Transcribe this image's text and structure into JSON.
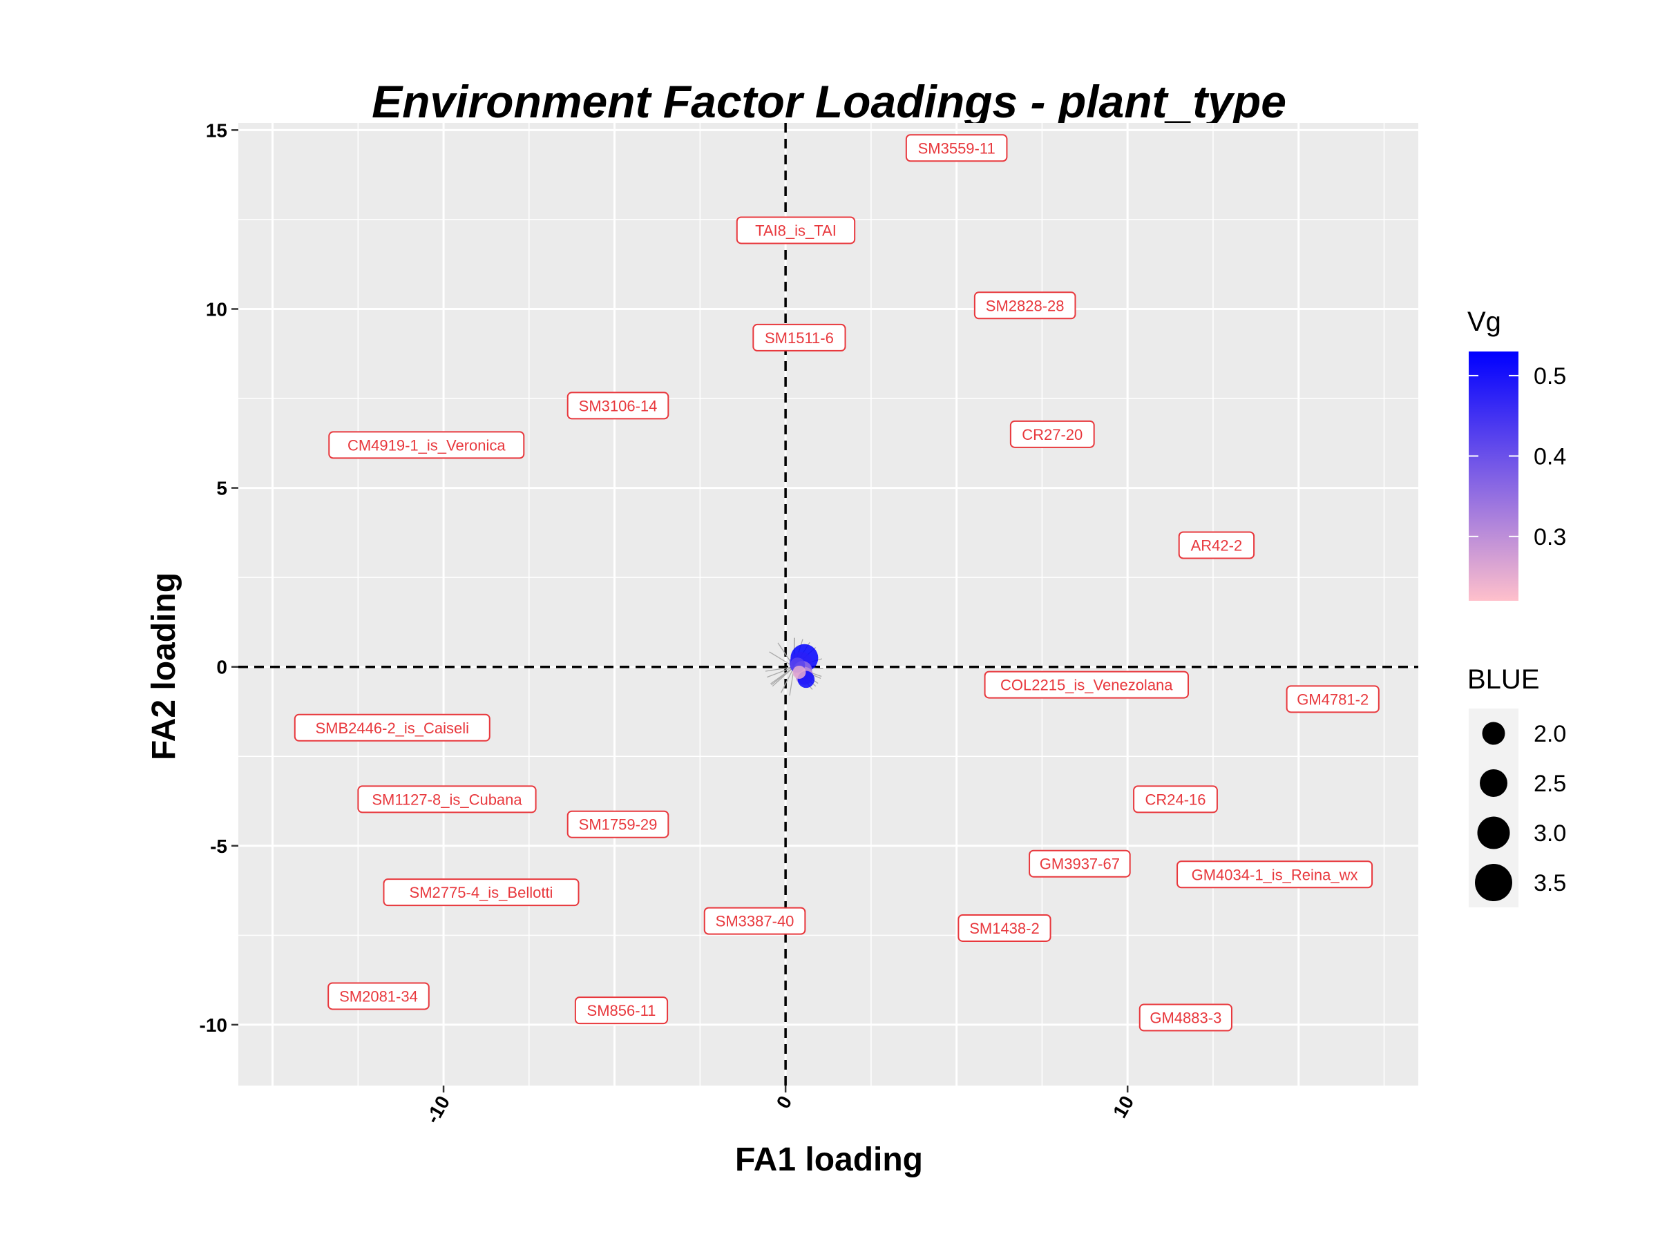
{
  "chart_data": {
    "type": "scatter",
    "title": "Environment Factor Loadings - plant_type",
    "xlabel": "FA1 loading",
    "ylabel": "FA2 loading",
    "xlim": [
      -16,
      18.5
    ],
    "ylim": [
      -11.7,
      15.2
    ],
    "x_ticks": [
      -10,
      0,
      10
    ],
    "y_ticks": [
      -10,
      -5,
      0,
      5,
      10,
      15
    ],
    "grid": true,
    "reference_lines": {
      "x": 0,
      "y": 0,
      "style": "dashed"
    },
    "labels": [
      {
        "text": "SM3559-11",
        "x": 5,
        "y": 14.5
      },
      {
        "text": "TAI8_is_TAI",
        "x": 0.3,
        "y": 12.2
      },
      {
        "text": "SM2828-28",
        "x": 7,
        "y": 10.1
      },
      {
        "text": "SM1511-6",
        "x": 0.4,
        "y": 9.2
      },
      {
        "text": "SM3106-14",
        "x": -4.9,
        "y": 7.3
      },
      {
        "text": "CM4919-1_is_Veronica",
        "x": -10.5,
        "y": 6.2
      },
      {
        "text": "CR27-20",
        "x": 7.8,
        "y": 6.5
      },
      {
        "text": "AR42-2",
        "x": 12.6,
        "y": 3.4
      },
      {
        "text": "COL2215_is_Venezolana",
        "x": 8.8,
        "y": -0.5
      },
      {
        "text": "GM4781-2",
        "x": 16,
        "y": -0.9
      },
      {
        "text": "SMB2446-2_is_Caiseli",
        "x": -11.5,
        "y": -1.7
      },
      {
        "text": "SM1127-8_is_Cubana",
        "x": -9.9,
        "y": -3.7
      },
      {
        "text": "CR24-16",
        "x": 11.4,
        "y": -3.7
      },
      {
        "text": "SM1759-29",
        "x": -4.9,
        "y": -4.4
      },
      {
        "text": "GM3937-67",
        "x": 8.6,
        "y": -5.5
      },
      {
        "text": "GM4034-1_is_Reina_wx",
        "x": 14.3,
        "y": -5.8
      },
      {
        "text": "SM2775-4_is_Bellotti",
        "x": -8.9,
        "y": -6.3
      },
      {
        "text": "SM3387-40",
        "x": -0.9,
        "y": -7.1
      },
      {
        "text": "SM1438-2",
        "x": 6.4,
        "y": -7.3
      },
      {
        "text": "SM2081-34",
        "x": -11.9,
        "y": -9.2
      },
      {
        "text": "SM856-11",
        "x": -4.8,
        "y": -9.6
      },
      {
        "text": "GM4883-3",
        "x": 11.7,
        "y": -9.8
      }
    ],
    "points": [
      {
        "x": 0.55,
        "y": 0.25,
        "BLUE": 3.5,
        "Vg": 0.53
      },
      {
        "x": 0.45,
        "y": 0.1,
        "BLUE": 3.0,
        "Vg": 0.48
      },
      {
        "x": 0.5,
        "y": -0.1,
        "BLUE": 2.6,
        "Vg": 0.35
      },
      {
        "x": 0.55,
        "y": -0.25,
        "BLUE": 2.5,
        "Vg": 0.3
      },
      {
        "x": 0.6,
        "y": -0.35,
        "BLUE": 2.4,
        "Vg": 0.52
      },
      {
        "x": 0.35,
        "y": 0.05,
        "BLUE": 2.2,
        "Vg": 0.42
      },
      {
        "x": 0.4,
        "y": -0.15,
        "BLUE": 2.0,
        "Vg": 0.25
      }
    ],
    "legend": {
      "placement": "right",
      "color": {
        "title": "Vg",
        "ticks": [
          0.5,
          0.4,
          0.3
        ],
        "range": [
          0.22,
          0.53
        ],
        "low_color": "#ffc0cb",
        "high_color": "#0000ff"
      },
      "size": {
        "title": "BLUE",
        "values": [
          2.0,
          2.5,
          3.0,
          3.5
        ]
      }
    },
    "colors": {
      "panel": "#ebebeb",
      "grid": "#ffffff",
      "label": "#e8383d",
      "segment": "#a9a9a9"
    }
  }
}
